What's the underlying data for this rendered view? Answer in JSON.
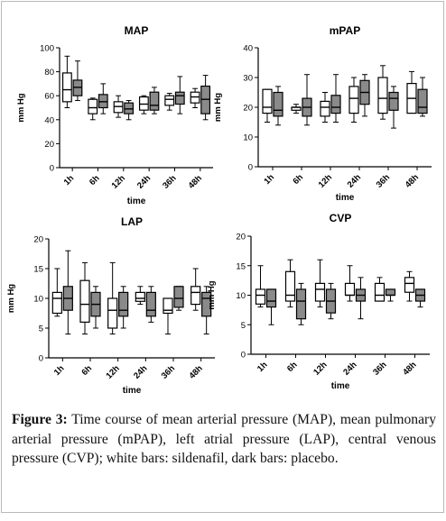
{
  "caption": {
    "label": "Figure 3:",
    "text": "Time course of mean arterial pressure (MAP), mean pulmonary arterial pressure (mPAP), left atrial pressure (LAP), central venous pressure (CVP); white bars: sildenafil, dark bars: placebo."
  },
  "colors": {
    "sildenafil": "#ffffff",
    "placebo": "#8a8a8a",
    "axis": "#000000"
  },
  "chart_data": [
    {
      "type": "boxplot",
      "title": "MAP",
      "ylabel": "mm Hg",
      "xlabel": "time",
      "ylim": [
        0,
        100
      ],
      "yticks": [
        0,
        20,
        40,
        60,
        80,
        100
      ],
      "categories": [
        "1h",
        "6h",
        "12h",
        "24h",
        "36h",
        "48h"
      ],
      "series": [
        {
          "color": "white",
          "boxes": [
            [
              50,
              55,
              65,
              79,
              93
            ],
            [
              40,
              45,
              50,
              57,
              58
            ],
            [
              42,
              46,
              51,
              55,
              60
            ],
            [
              45,
              48,
              53,
              59,
              60
            ],
            [
              48,
              52,
              57,
              60,
              62
            ],
            [
              50,
              54,
              59,
              63,
              66
            ]
          ]
        },
        {
          "color": "dark",
          "boxes": [
            [
              56,
              60,
              67,
              73,
              89
            ],
            [
              45,
              50,
              55,
              61,
              70
            ],
            [
              40,
              45,
              49,
              54,
              56
            ],
            [
              45,
              48,
              52,
              63,
              67
            ],
            [
              45,
              53,
              60,
              63,
              76
            ],
            [
              40,
              45,
              57,
              68,
              77
            ]
          ]
        }
      ]
    },
    {
      "type": "boxplot",
      "title": "mPAP",
      "ylabel": "mm Hg",
      "xlabel": "time",
      "ylim": [
        0,
        40
      ],
      "yticks": [
        0,
        10,
        20,
        30,
        40
      ],
      "categories": [
        "1h",
        "6h",
        "12h",
        "24h",
        "36h",
        "48h"
      ],
      "series": [
        {
          "color": "white",
          "boxes": [
            [
              15,
              18,
              20,
              26,
              26
            ],
            [
              18,
              19,
              20,
              20,
              21
            ],
            [
              15,
              17,
              20,
              22,
              25
            ],
            [
              15,
              18,
              23,
              27,
              30
            ],
            [
              16,
              18,
              23,
              30,
              34
            ],
            [
              19,
              18,
              23,
              28,
              32
            ]
          ]
        },
        {
          "color": "dark",
          "boxes": [
            [
              14,
              17,
              19,
              25,
              27
            ],
            [
              14,
              17,
              20,
              23,
              31
            ],
            [
              15,
              18,
              20,
              24,
              31
            ],
            [
              17,
              21,
              25,
              29,
              31
            ],
            [
              13,
              19,
              23,
              25,
              27
            ],
            [
              17,
              18,
              20,
              26,
              30
            ]
          ]
        }
      ]
    },
    {
      "type": "boxplot",
      "title": "LAP",
      "ylabel": "mm Hg",
      "xlabel": "time",
      "ylim": [
        0,
        20
      ],
      "yticks": [
        0,
        5,
        10,
        15,
        20
      ],
      "categories": [
        "1h",
        "6h",
        "12h",
        "24h",
        "36h",
        "48h"
      ],
      "series": [
        {
          "color": "white",
          "boxes": [
            [
              7,
              7.5,
              10,
              11,
              15
            ],
            [
              4,
              6,
              9,
              13,
              16
            ],
            [
              4,
              5,
              8,
              10,
              16
            ],
            [
              9,
              9.5,
              10,
              11,
              12
            ],
            [
              4,
              7.5,
              8,
              10,
              10
            ],
            [
              8,
              9,
              11,
              12,
              15
            ]
          ]
        },
        {
          "color": "dark",
          "boxes": [
            [
              4,
              8,
              10,
              12,
              18
            ],
            [
              5,
              7,
              9,
              11,
              12
            ],
            [
              5,
              7,
              8,
              11,
              12
            ],
            [
              6,
              7,
              8,
              11,
              12
            ],
            [
              8,
              8.5,
              10,
              12,
              12
            ],
            [
              4,
              7,
              10,
              11,
              12
            ]
          ]
        }
      ]
    },
    {
      "type": "boxplot",
      "title": "CVP",
      "ylabel": "mm Hg",
      "xlabel": "time",
      "ylim": [
        0,
        20
      ],
      "yticks": [
        0,
        5,
        10,
        15,
        20
      ],
      "categories": [
        "1h",
        "6h",
        "12h",
        "24h",
        "36h",
        "48h"
      ],
      "series": [
        {
          "color": "white",
          "boxes": [
            [
              8,
              8.5,
              10,
              11,
              15
            ],
            [
              8,
              9,
              10,
              14,
              16
            ],
            [
              8,
              9,
              11,
              12,
              16
            ],
            [
              9,
              10,
              10,
              12,
              15
            ],
            [
              9,
              9,
              10,
              12,
              13
            ],
            [
              9,
              10.5,
              12,
              13,
              14
            ]
          ]
        },
        {
          "color": "dark",
          "boxes": [
            [
              5,
              8,
              9,
              11,
              11
            ],
            [
              5,
              6,
              9,
              11,
              12
            ],
            [
              6,
              7,
              9,
              11,
              12
            ],
            [
              6,
              9,
              10,
              11,
              13
            ],
            [
              9,
              10,
              10,
              11,
              11
            ],
            [
              8,
              9,
              10,
              11,
              11
            ]
          ]
        }
      ]
    }
  ]
}
